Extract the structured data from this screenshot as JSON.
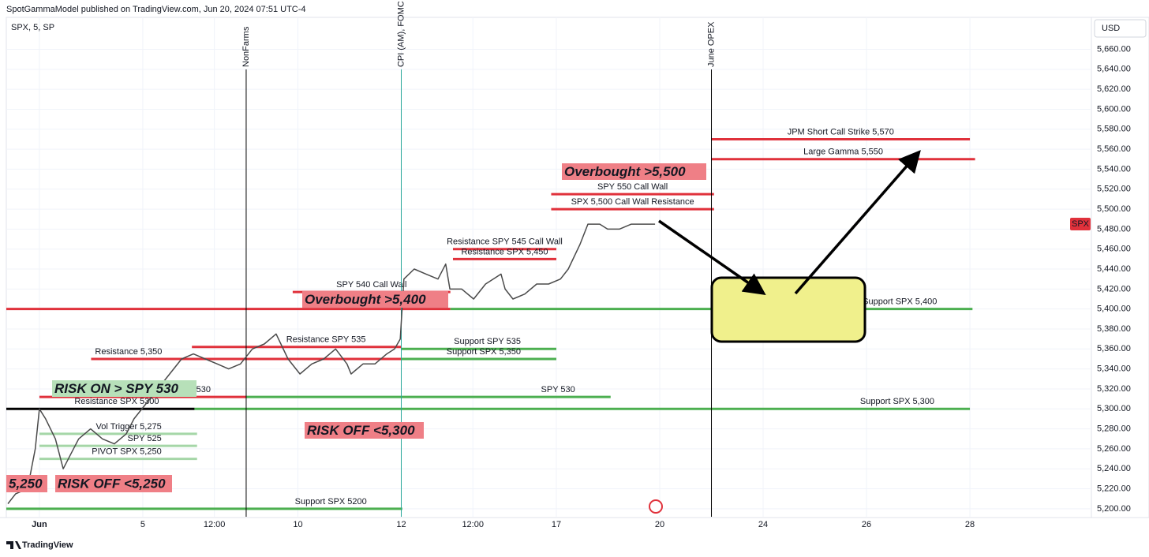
{
  "header": {
    "title": "SpotGammaModel published on TradingView.com, Jun 20, 2024 07:51 UTC-4"
  },
  "footer": {
    "brand": "TradingView"
  },
  "chart_data": {
    "type": "line",
    "symbol": "SPX, 5, SP",
    "currency": "USD",
    "price_label": "SPX",
    "color": "#4a4a4a",
    "x": [
      -0.61,
      -0.46,
      -0.23,
      -0.08,
      0,
      0.12,
      0.31,
      0.46,
      0.61,
      0.76,
      0.99,
      1.22,
      1.45,
      1.68,
      1.83,
      2.06,
      2.29,
      2.52,
      2.75,
      2.98,
      3.21,
      3.44,
      3.66,
      3.89,
      4.12,
      4.35,
      4.58,
      4.81,
      5.04,
      5.27,
      5.5,
      5.73,
      5.95,
      6.03,
      6.26,
      6.49,
      6.72,
      6.87,
      6.98,
      7.05,
      7.25,
      7.48,
      7.71,
      7.86,
      7.94,
      8.17,
      8.4,
      8.63,
      8.93,
      9.01,
      9.16,
      9.39,
      9.62,
      9.85,
      10.08,
      10.23,
      10.46,
      10.61,
      10.84,
      10.99,
      11.22,
      11.45,
      11.68,
      11.91
    ],
    "values": [
      5205,
      5215,
      5220,
      5260,
      5300,
      5290,
      5270,
      5240,
      5255,
      5270,
      5280,
      5270,
      5265,
      5275,
      5290,
      5305,
      5320,
      5335,
      5350,
      5355,
      5350,
      5345,
      5340,
      5345,
      5360,
      5365,
      5375,
      5350,
      5335,
      5345,
      5350,
      5360,
      5345,
      5335,
      5345,
      5345,
      5355,
      5360,
      5370,
      5430,
      5440,
      5435,
      5430,
      5445,
      5420,
      5420,
      5410,
      5425,
      5435,
      5420,
      5410,
      5415,
      5425,
      5425,
      5430,
      5440,
      5465,
      5485,
      5485,
      5480,
      5480,
      5485,
      5485,
      5485
    ],
    "xlim": [
      -0.64,
      20.35
    ],
    "ylim": [
      5192,
      5692
    ],
    "xticks": [
      {
        "value": 0,
        "label": "Jun"
      },
      {
        "value": 2,
        "label": "5"
      },
      {
        "value": 3.385,
        "label": "12:00"
      },
      {
        "value": 5,
        "label": "10"
      },
      {
        "value": 7,
        "label": "12"
      },
      {
        "value": 8.385,
        "label": "12:00"
      },
      {
        "value": 10,
        "label": "17"
      },
      {
        "value": 12,
        "label": "20"
      },
      {
        "value": 14,
        "label": "24"
      },
      {
        "value": 16,
        "label": "26"
      },
      {
        "value": 18,
        "label": "28"
      }
    ],
    "yticks": [
      {
        "value": 5200,
        "label": "5,200.00"
      },
      {
        "value": 5220,
        "label": "5,220.00"
      },
      {
        "value": 5240,
        "label": "5,240.00"
      },
      {
        "value": 5260,
        "label": "5,260.00"
      },
      {
        "value": 5280,
        "label": "5,280.00"
      },
      {
        "value": 5300,
        "label": "5,300.00"
      },
      {
        "value": 5320,
        "label": "5,320.00"
      },
      {
        "value": 5340,
        "label": "5,340.00"
      },
      {
        "value": 5360,
        "label": "5,360.00"
      },
      {
        "value": 5380,
        "label": "5,380.00"
      },
      {
        "value": 5400,
        "label": "5,400.00"
      },
      {
        "value": 5420,
        "label": "5,420.00"
      },
      {
        "value": 5440,
        "label": "5,440.00"
      },
      {
        "value": 5460,
        "label": "5,460.00"
      },
      {
        "value": 5480,
        "label": "5,480.00"
      },
      {
        "value": 5500,
        "label": "5,500.00"
      },
      {
        "value": 5520,
        "label": "5,520.00"
      },
      {
        "value": 5540,
        "label": "5,540.00"
      },
      {
        "value": 5560,
        "label": "5,560.00"
      },
      {
        "value": 5580,
        "label": "5,580.00"
      },
      {
        "value": 5600,
        "label": "5,600.00"
      },
      {
        "value": 5620,
        "label": "5,620.00"
      },
      {
        "value": 5640,
        "label": "5,640.00"
      },
      {
        "value": 5660,
        "label": "5,660.00"
      }
    ],
    "grid": true,
    "events": [
      {
        "label": "NonFarms",
        "x": 4,
        "color": "#000000"
      },
      {
        "label": "CPI (AM), FOMC (PM)",
        "x": 7,
        "color": "#26a69a"
      },
      {
        "label": "June OPEX",
        "x": 13,
        "color": "#000000"
      }
    ],
    "levels": [
      {
        "label": "JPM Short Call Strike 5,570",
        "value": 5570,
        "x": [
          13,
          18
        ],
        "color": "#e0313b"
      },
      {
        "label": "Large Gamma 5,550",
        "value": 5550,
        "x": [
          13,
          18.1
        ],
        "color": "#e0313b"
      },
      {
        "label": "SPY 550 Call Wall",
        "value": 5515,
        "x": [
          9.9,
          13.05
        ],
        "color": "#e0313b"
      },
      {
        "label": "SPX 5,500 Call Wall Resistance",
        "value": 5500,
        "x": [
          9.9,
          13.05
        ],
        "color": "#e0313b"
      },
      {
        "label": "Resistance SPY 545 Call Wall",
        "value": 5460,
        "x": [
          8,
          10
        ],
        "color": "#e0313b"
      },
      {
        "label": "Resistance SPX  5,450",
        "value": 5450,
        "x": [
          8,
          10
        ],
        "color": "#e0313b"
      },
      {
        "label": "SPY 540 Call Wall",
        "value": 5417,
        "x": [
          4.9,
          7.95
        ],
        "color": "#e0313b"
      },
      {
        "value": 5400,
        "x": [
          -0.64,
          7.95
        ],
        "color": "#e0313b"
      },
      {
        "label": "Support SPX 5,400",
        "value": 5400,
        "x": [
          7.95,
          18.05
        ],
        "color": "#4caf50"
      },
      {
        "label": "Resistance SPY 535",
        "value": 5362,
        "x": [
          2.95,
          7
        ],
        "color": "#e0313b"
      },
      {
        "label": "Support SPY 535",
        "value": 5360,
        "x": [
          7,
          10
        ],
        "color": "#4caf50"
      },
      {
        "label": "Support SPX 5,350",
        "value": 5350,
        "x": [
          7,
          10
        ],
        "color": "#4caf50"
      },
      {
        "label": "Resistance 5,350",
        "value": 5350,
        "x": [
          1,
          7
        ],
        "color": "#e0313b"
      },
      {
        "label": "SPY 530",
        "value": 5312,
        "x": [
          0,
          4
        ],
        "color": "#e0313b"
      },
      {
        "label": "SPY 530",
        "value": 5312,
        "x": [
          4,
          11.05
        ],
        "color": "#4caf50"
      },
      {
        "label": "Resistance SPX 5300",
        "value": 5300,
        "x": [
          -0.64,
          3
        ],
        "color": "#000000"
      },
      {
        "label": "Support SPX 5,300",
        "value": 5300,
        "x": [
          3,
          18
        ],
        "color": "#4caf50"
      },
      {
        "label": "Vol Trigger 5,275",
        "value": 5275,
        "x": [
          0,
          3.05
        ],
        "color": "#a5d6a7"
      },
      {
        "label": "SPY 525",
        "value": 5263,
        "x": [
          0,
          3.05
        ],
        "color": "#a5d6a7"
      },
      {
        "label": "PIVOT SPX 5,250",
        "value": 5250,
        "x": [
          0,
          3.05
        ],
        "color": "#a5d6a7"
      },
      {
        "label": "Support SPX 5200",
        "value": 5200,
        "x": [
          -0.64,
          7.02
        ],
        "color": "#4caf50"
      }
    ],
    "boxes": [
      {
        "label": "Overbought >5,500",
        "color": "#ef7f86"
      },
      {
        "label": "Overbought >5,400",
        "color": "#ef7f86"
      },
      {
        "label": "RISK ON > SPY 530",
        "color": "#b7e0b9"
      },
      {
        "label": "RISK OFF <5,300",
        "color": "#ef7f86"
      },
      {
        "label": "RISK OFF <5,250",
        "color": "#ef7f86"
      },
      {
        "label": "5,250",
        "color": "#ef7f86"
      }
    ]
  }
}
